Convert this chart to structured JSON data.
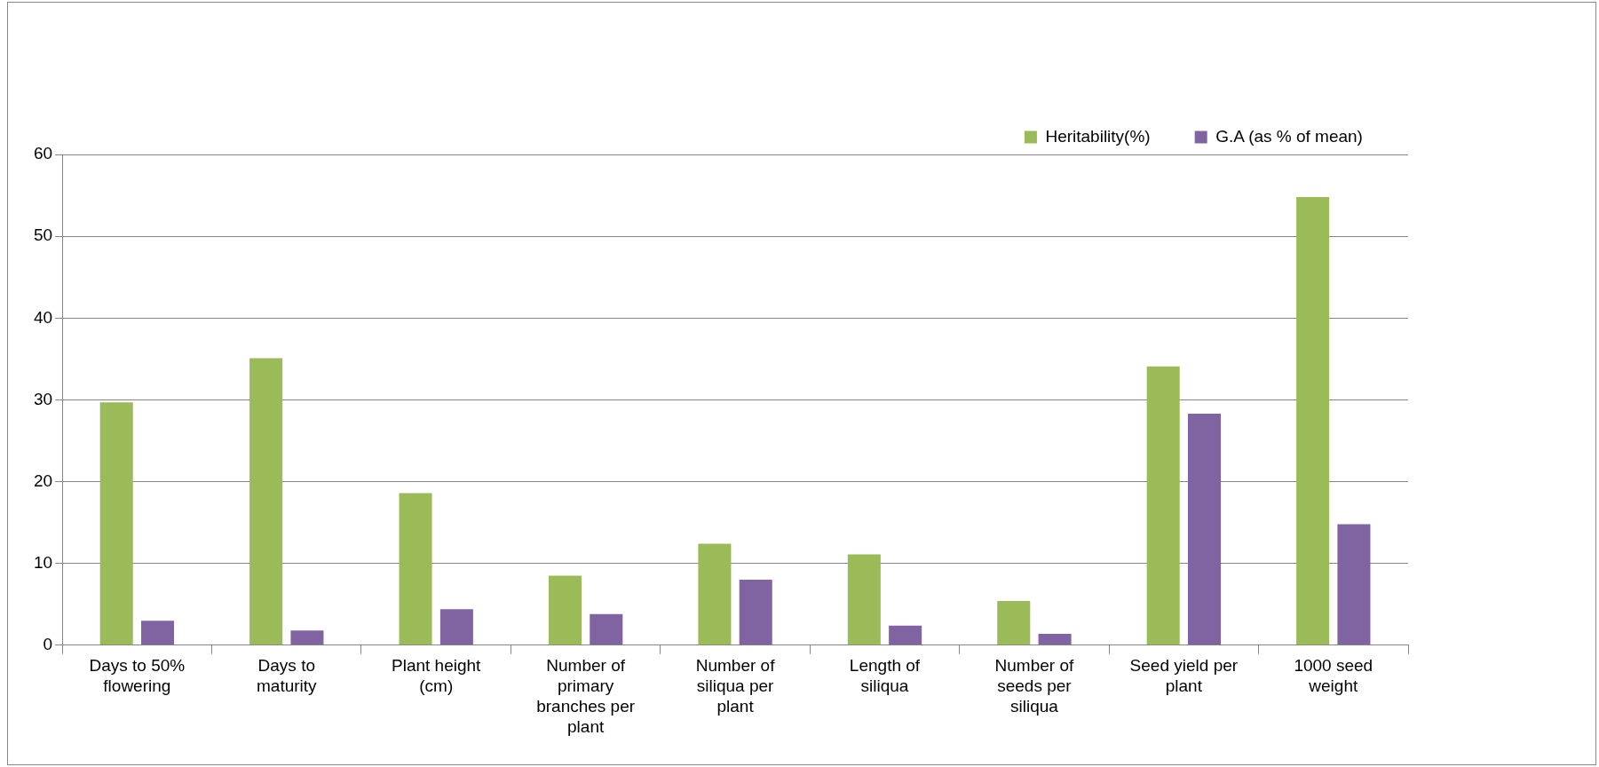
{
  "chart_data": {
    "type": "bar",
    "categories": [
      "Days to 50% flowering",
      "Days to maturity",
      "Plant height (cm)",
      "Number of primary branches per plant",
      "Number of siliqua per plant",
      "Length of siliqua",
      "Number of seeds per siliqua",
      "Seed yield per plant",
      "1000 seed weight"
    ],
    "series": [
      {
        "name": "Heritability(%)",
        "color": "#9bbb59",
        "values": [
          29.7,
          35.1,
          18.6,
          8.5,
          12.4,
          11.1,
          5.4,
          34.1,
          54.8
        ]
      },
      {
        "name": "G.A (as % of mean)",
        "color": "#8064a2",
        "values": [
          3.0,
          1.8,
          4.4,
          3.8,
          8.0,
          2.4,
          1.4,
          28.3,
          14.8
        ]
      }
    ],
    "ylim": [
      0,
      60
    ],
    "yticks": [
      0,
      10,
      20,
      30,
      40,
      50,
      60
    ],
    "grid": "y",
    "legend": "top right"
  }
}
